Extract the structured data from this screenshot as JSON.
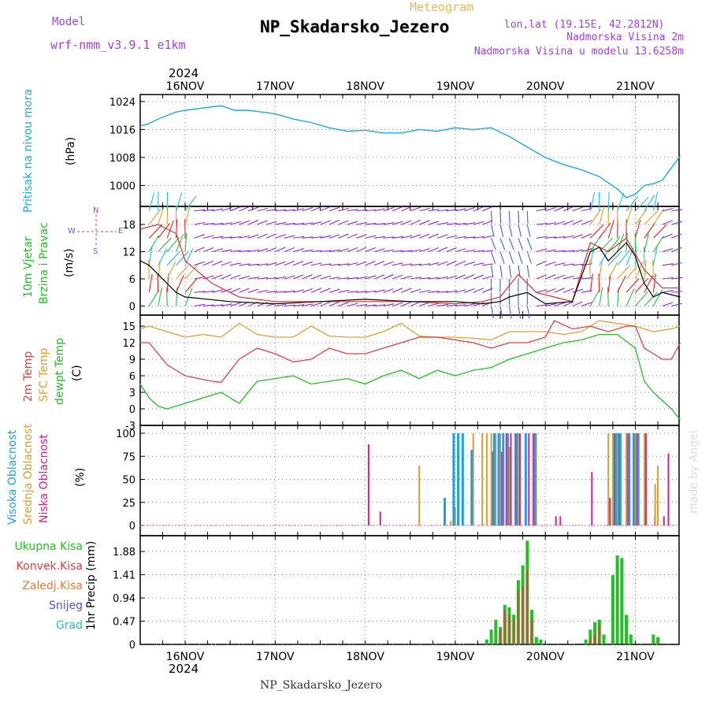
{
  "header": {
    "model_label": "Model",
    "model_name": "wrf-nmm_v3.9.1  e1km",
    "meteogram_label": "Meteogram",
    "station_title": "NP_Skadarsko_Jezero",
    "coords": "lon,lat (19.15E, 42.2812N)",
    "altitude": "Nadmorska Visina 2m",
    "model_altitude": "Nadmorska Visina u modelu 13.6258m",
    "footer_station": "NP_Skadarsko_Jezero",
    "watermark": "made by Angel",
    "year_top": "2024",
    "year_bottom": "2024"
  },
  "colors": {
    "pressure": "#1ea8e6",
    "wind_title": "#1fbf1f",
    "t2m": "#e04040",
    "tsfc": "#d9a030",
    "dewpoint": "#22c022",
    "cloud_high": "#1e9ee6",
    "cloud_mid": "#d4a030",
    "cloud_low": "#d81e8a",
    "precip_total": "#22c022",
    "precip_conv": "#e04040",
    "precip_frozen": "#f07830",
    "snow": "#5050e0",
    "hail": "#20c0c0",
    "model_text": "#a040e0"
  },
  "panel_labels": {
    "pressure": {
      "name": "Pritisak na nivou mora",
      "unit": "(hPa)"
    },
    "wind": {
      "name1": "10m Vjetar",
      "name2": "Brzina i Pravac",
      "unit": "(m/s)",
      "compass_n": "N",
      "compass_e": "E",
      "compass_w": "W",
      "compass_s": "S"
    },
    "temp": {
      "t2m": "2m Temp",
      "tsfc": "SFC Temp",
      "dew": "dewpt Temp",
      "unit": "(C)"
    },
    "cloud": {
      "high": "Visoka Oblacnost",
      "mid": "Srednja Oblacnost",
      "low": "Niska Oblacnost",
      "unit": "(%)"
    },
    "precip": {
      "unit": "1hr Precip (mm)",
      "legend": [
        "Ukupna Kisa",
        "Konvek.Kisa",
        "Zaledj.Kisa",
        "Snijeg",
        "Grad"
      ]
    }
  },
  "chart_data": {
    "type": "line",
    "x_labels": [
      "16NOV",
      "17NOV",
      "18NOV",
      "19NOV",
      "20NOV",
      "21NOV"
    ],
    "pressure": {
      "yticks": [
        1000,
        1008,
        1016,
        1024
      ],
      "ylim": [
        994,
        1026
      ],
      "x": [
        -0.5,
        -0.42,
        -0.3,
        -0.2,
        -0.1,
        0,
        0.15,
        0.3,
        0.4,
        0.55,
        0.7,
        0.85,
        1,
        1.2,
        1.4,
        1.6,
        1.8,
        2,
        2.2,
        2.4,
        2.6,
        2.8,
        3,
        3.2,
        3.4,
        3.6,
        3.8,
        4,
        4.2,
        4.4,
        4.6,
        4.8,
        4.9,
        5,
        5.1,
        5.2,
        5.3,
        5.4,
        5.5
      ],
      "values": [
        1017,
        1017.5,
        1019,
        1020,
        1021,
        1021.5,
        1022,
        1022.5,
        1022.8,
        1021.5,
        1021.5,
        1021,
        1020.5,
        1019,
        1018,
        1016.5,
        1015.5,
        1015.8,
        1015,
        1015,
        1016,
        1015.5,
        1016.5,
        1016,
        1016.5,
        1014,
        1011,
        1008,
        1006,
        1004.5,
        1002.5,
        999,
        996.5,
        997.5,
        1000,
        1000.5,
        1001.5,
        1005,
        1008.5
      ]
    },
    "wind": {
      "yticks": [
        0,
        6,
        12,
        18
      ],
      "ylim": [
        -2,
        22
      ],
      "speed_black": {
        "x": [
          -0.5,
          -0.4,
          -0.3,
          -0.2,
          -0.1,
          0,
          0.5,
          1,
          1.5,
          2,
          2.5,
          3,
          3.3,
          3.5,
          3.6,
          3.8,
          4,
          4.3,
          4.5,
          4.6,
          4.7,
          4.8,
          4.9,
          5,
          5.1,
          5.2,
          5.3,
          5.5
        ],
        "values": [
          10,
          9,
          7,
          5,
          3,
          2,
          1,
          0.5,
          1,
          1.5,
          1,
          1,
          0.5,
          1,
          2,
          3,
          0.5,
          1,
          12,
          13,
          10,
          12,
          14,
          11,
          5,
          2,
          3,
          2
        ]
      },
      "gust_red": {
        "x": [
          -0.5,
          -0.3,
          -0.1,
          0,
          0.3,
          0.6,
          1,
          1.5,
          2,
          2.5,
          3,
          3.3,
          3.5,
          3.7,
          3.9,
          4.1,
          4.3,
          4.5,
          4.7,
          4.9,
          5.1,
          5.3,
          5.5
        ],
        "values": [
          17,
          18,
          16,
          10,
          5,
          2,
          1,
          1,
          1,
          1,
          0.5,
          1,
          2,
          7,
          3,
          2,
          1,
          14,
          12,
          15,
          8,
          4,
          4
        ]
      }
    },
    "temperature": {
      "yticks": [
        -3,
        0,
        3,
        6,
        9,
        12,
        15
      ],
      "ylim": [
        -3,
        17
      ],
      "t2m": {
        "x": [
          -0.5,
          -0.4,
          -0.3,
          -0.2,
          -0.1,
          0,
          0.15,
          0.3,
          0.4,
          0.6,
          0.8,
          1,
          1.2,
          1.4,
          1.6,
          1.8,
          2,
          2.2,
          2.4,
          2.6,
          2.8,
          3,
          3.2,
          3.4,
          3.6,
          3.8,
          4,
          4.1,
          4.3,
          4.5,
          4.7,
          4.9,
          5,
          5.1,
          5.2,
          5.3,
          5.4,
          5.5
        ],
        "values": [
          12,
          12,
          10,
          8,
          7,
          6,
          5.5,
          5,
          4.8,
          9,
          11,
          10,
          8.5,
          9,
          11,
          10,
          10,
          11,
          12,
          13,
          13,
          12.5,
          12,
          11,
          12,
          12,
          13,
          16,
          14.5,
          15,
          14,
          15,
          15,
          11,
          10,
          9,
          9,
          12
        ]
      },
      "tsfc": {
        "x": [
          -0.5,
          -0.4,
          -0.2,
          0,
          0.2,
          0.4,
          0.6,
          0.8,
          1,
          1.2,
          1.4,
          1.6,
          1.8,
          2,
          2.2,
          2.4,
          2.6,
          2.8,
          3,
          3.2,
          3.4,
          3.6,
          3.8,
          4,
          4.2,
          4.4,
          4.6,
          4.8,
          5,
          5.2,
          5.4,
          5.5
        ],
        "values": [
          14.5,
          15,
          14,
          13,
          13.5,
          13,
          15.5,
          13.5,
          13,
          13,
          15,
          13.2,
          13,
          13,
          14,
          15.5,
          13.2,
          13,
          13,
          12.8,
          12.5,
          14,
          14,
          14,
          13.5,
          14,
          16,
          15.5,
          15,
          14,
          14.5,
          15
        ]
      },
      "dewpoint": {
        "x": [
          -0.5,
          -0.4,
          -0.3,
          -0.2,
          -0.1,
          0,
          0.2,
          0.4,
          0.6,
          0.8,
          1,
          1.2,
          1.4,
          1.6,
          1.8,
          2,
          2.2,
          2.4,
          2.6,
          2.8,
          3,
          3.2,
          3.4,
          3.6,
          3.8,
          4,
          4.2,
          4.4,
          4.6,
          4.8,
          5,
          5.1,
          5.2,
          5.3,
          5.4,
          5.5
        ],
        "values": [
          4.5,
          2,
          0.5,
          0,
          0.5,
          1,
          2,
          3,
          1,
          5,
          5.5,
          6,
          4.5,
          5,
          5.5,
          4.5,
          6,
          7,
          5.5,
          7,
          6,
          7,
          7.5,
          9,
          10,
          11,
          12,
          12.5,
          13.5,
          13.5,
          11,
          5,
          3,
          1.5,
          0,
          -2
        ]
      }
    },
    "cloud": {
      "yticks": [
        0,
        25,
        50,
        75,
        100
      ],
      "ylim": [
        0,
        100
      ],
      "high": {
        "x": [
          2.9,
          3,
          3.05,
          3.1,
          3.2,
          3.45,
          3.5,
          3.55,
          3.6,
          3.7,
          3.8,
          3.9,
          4.8,
          4.85,
          4.95,
          5,
          5.05
        ],
        "values": [
          30,
          100,
          100,
          100,
          82,
          100,
          100,
          100,
          100,
          100,
          100,
          100,
          100,
          100,
          100,
          100,
          100
        ]
      },
      "mid": {
        "x": [
          2.6,
          2.95,
          3,
          3.2,
          3.3,
          3.35,
          3.4,
          3.45,
          3.5,
          3.6,
          3.7,
          3.9,
          4.7,
          4.75,
          4.8,
          4.9,
          5,
          5.1,
          5.22,
          5.25
        ],
        "values": [
          65,
          5,
          20,
          100,
          100,
          100,
          100,
          100,
          100,
          85,
          100,
          100,
          100,
          100,
          100,
          100,
          100,
          100,
          45,
          65
        ]
      },
      "low": {
        "x": [
          2.02,
          2.15,
          3.4,
          3.5,
          3.55,
          3.6,
          3.65,
          3.7,
          3.8,
          3.85,
          4.1,
          4.15,
          4.5,
          4.7,
          4.75,
          4.8,
          4.9,
          5,
          5.1,
          5.2,
          5.3,
          5.35
        ],
        "values": [
          88,
          15,
          80,
          80,
          100,
          100,
          100,
          100,
          100,
          100,
          10,
          10,
          58,
          30,
          100,
          100,
          100,
          100,
          100,
          10,
          10,
          78
        ]
      }
    },
    "precip": {
      "yticks": [
        0,
        0.47,
        0.94,
        1.41,
        1.88
      ],
      "ylim": [
        0,
        2.2
      ],
      "total": {
        "x": [
          3.35,
          3.4,
          3.45,
          3.5,
          3.55,
          3.6,
          3.65,
          3.7,
          3.75,
          3.8,
          3.85,
          3.9,
          3.95,
          4.45,
          4.5,
          4.55,
          4.6,
          4.65,
          4.75,
          4.8,
          4.85,
          4.9,
          4.95,
          5.2,
          5.25
        ],
        "values": [
          0.1,
          0.3,
          0.5,
          0.35,
          0.8,
          0.75,
          0.6,
          1.3,
          1.6,
          2.1,
          0.7,
          0.15,
          0.1,
          0.1,
          0.3,
          0.45,
          0.5,
          0.2,
          1.4,
          1.8,
          1.75,
          0.6,
          0.2,
          0.2,
          0.15
        ]
      },
      "convective": {
        "x": [
          3.5,
          3.55,
          3.6,
          3.65,
          3.7,
          3.75,
          3.8,
          3.85,
          4.5,
          4.55,
          4.6
        ],
        "values": [
          0.3,
          0.7,
          0.6,
          0.5,
          1.1,
          1.2,
          1.5,
          0.5,
          0.1,
          0.2,
          0.4
        ]
      }
    }
  }
}
